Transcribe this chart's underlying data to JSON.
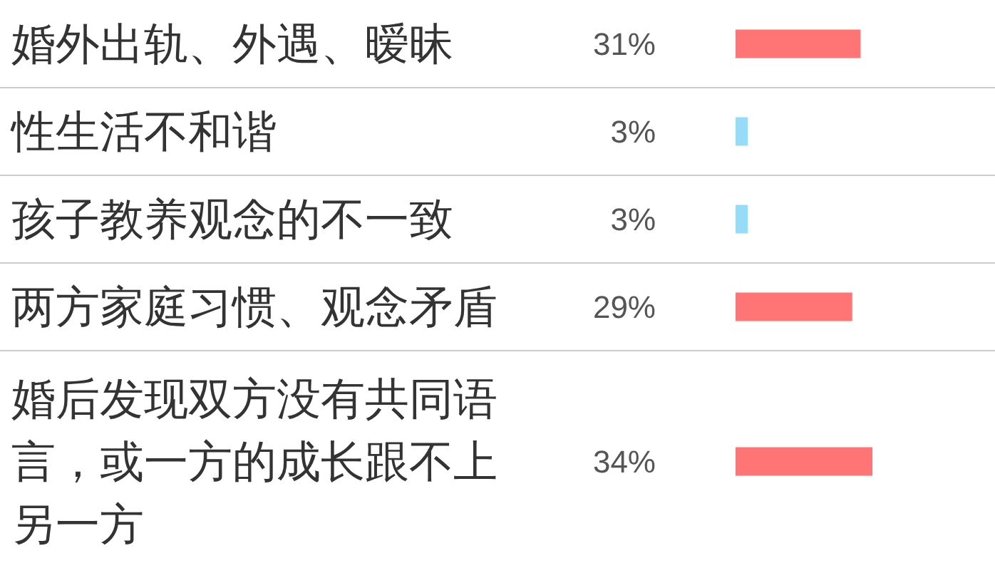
{
  "chart_data": {
    "type": "bar",
    "orientation": "horizontal",
    "data_labels": true,
    "value_labels": [
      "31%",
      "3%",
      "3%",
      "29%",
      "34%"
    ],
    "categories": [
      "婚外出轨、外遇、暧昧",
      "性生活不和谐",
      "孩子教养观念的不一致",
      "两方家庭习惯、观念矛盾",
      "婚后发现双方没有共同语言，或一方的成长跟不上另一方"
    ],
    "values": [
      31,
      3,
      3,
      29,
      34
    ],
    "colors": [
      "#ff7475",
      "#96dcf8",
      "#96dcf8",
      "#ff7475",
      "#ff7475"
    ]
  }
}
